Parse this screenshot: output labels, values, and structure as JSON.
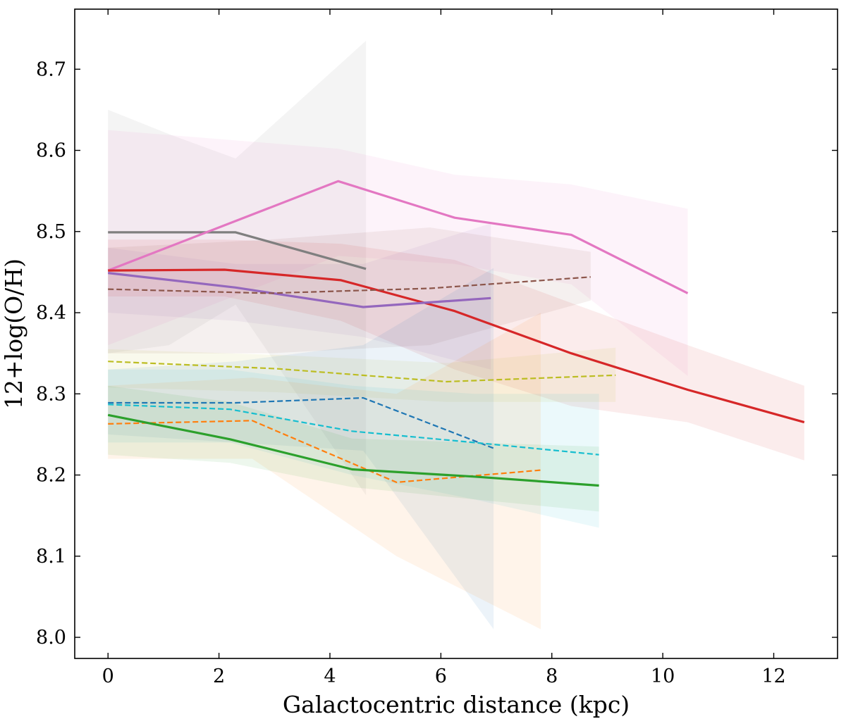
{
  "chart_data": {
    "type": "line",
    "title": "",
    "xlabel": "Galactocentric distance (kpc)",
    "ylabel": "12+log(O/H)",
    "xlim": [
      -0.6,
      13.15
    ],
    "ylim": [
      7.974,
      8.774
    ],
    "xticks": [
      0,
      2,
      4,
      6,
      8,
      10,
      12
    ],
    "xtick_labels": [
      "0",
      "2",
      "4",
      "6",
      "8",
      "10",
      "12"
    ],
    "yticks": [
      8.0,
      8.1,
      8.2,
      8.3,
      8.4,
      8.5,
      8.6,
      8.7
    ],
    "ytick_labels": [
      "8.0",
      "8.1",
      "8.2",
      "8.3",
      "8.4",
      "8.5",
      "8.6",
      "8.7"
    ],
    "grid": false,
    "series": [
      {
        "name": "gray",
        "color": "#7f7f7f",
        "dash": false,
        "x": [
          0,
          1.1,
          2.3,
          4.65
        ],
        "y": [
          8.499,
          8.499,
          8.499,
          8.454
        ],
        "band_upper": [
          8.65,
          8.62,
          8.59,
          8.735
        ],
        "band_lower": [
          8.35,
          8.36,
          8.41,
          8.175
        ]
      },
      {
        "name": "pink",
        "color": "#e377c2",
        "dash": false,
        "x": [
          0,
          4.15,
          6.25,
          8.35,
          10.45
        ],
        "y": [
          8.452,
          8.562,
          8.517,
          8.496,
          8.424
        ],
        "band_upper": [
          8.625,
          8.602,
          8.57,
          8.558,
          8.528
        ],
        "band_lower": [
          8.36,
          8.47,
          8.46,
          8.435,
          8.322
        ]
      },
      {
        "name": "red",
        "color": "#d62728",
        "dash": false,
        "x": [
          0,
          2.1,
          4.2,
          6.25,
          8.35,
          10.45,
          12.55
        ],
        "y": [
          8.452,
          8.453,
          8.44,
          8.402,
          8.35,
          8.305,
          8.265
        ],
        "band_upper": [
          8.49,
          8.49,
          8.485,
          8.465,
          8.412,
          8.36,
          8.31
        ],
        "band_lower": [
          8.42,
          8.42,
          8.39,
          8.33,
          8.285,
          8.265,
          8.218
        ]
      },
      {
        "name": "purple",
        "color": "#9467bd",
        "dash": false,
        "x": [
          0,
          2.3,
          4.6,
          6.9
        ],
        "y": [
          8.449,
          8.431,
          8.407,
          8.418
        ],
        "band_upper": [
          8.48,
          8.46,
          8.46,
          8.51
        ],
        "band_lower": [
          8.4,
          8.39,
          8.37,
          8.33
        ]
      },
      {
        "name": "brown",
        "color": "#8c564b",
        "dash": true,
        "x": [
          0,
          2.9,
          5.8,
          8.7
        ],
        "y": [
          8.429,
          8.424,
          8.43,
          8.444
        ],
        "band_upper": [
          8.48,
          8.49,
          8.505,
          8.475
        ],
        "band_lower": [
          8.35,
          8.35,
          8.36,
          8.415
        ]
      },
      {
        "name": "olive",
        "color": "#bcbd22",
        "dash": true,
        "x": [
          0,
          3.05,
          6.1,
          9.15
        ],
        "y": [
          8.34,
          8.331,
          8.315,
          8.323
        ],
        "band_upper": [
          8.355,
          8.348,
          8.338,
          8.357
        ],
        "band_lower": [
          8.308,
          8.302,
          8.29,
          8.29
        ]
      },
      {
        "name": "blue",
        "color": "#1f77b4",
        "dash": true,
        "x": [
          0,
          2.3,
          4.6,
          6.95
        ],
        "y": [
          8.289,
          8.289,
          8.295,
          8.233
        ],
        "band_upper": [
          8.33,
          8.34,
          8.36,
          8.455
        ],
        "band_lower": [
          8.25,
          8.24,
          8.23,
          8.01
        ]
      },
      {
        "name": "cyan",
        "color": "#17becf",
        "dash": true,
        "x": [
          0,
          2.2,
          4.4,
          6.6,
          8.85
        ],
        "y": [
          8.287,
          8.281,
          8.254,
          8.24,
          8.225
        ],
        "band_upper": [
          8.33,
          8.33,
          8.31,
          8.3,
          8.3
        ],
        "band_lower": [
          8.24,
          8.24,
          8.2,
          8.17,
          8.135
        ]
      },
      {
        "name": "orange",
        "color": "#ff7f0e",
        "dash": true,
        "x": [
          0,
          2.6,
          5.2,
          7.8
        ],
        "y": [
          8.263,
          8.267,
          8.191,
          8.206
        ],
        "band_upper": [
          8.31,
          8.32,
          8.3,
          8.4
        ],
        "band_lower": [
          8.22,
          8.22,
          8.1,
          8.01
        ]
      },
      {
        "name": "green",
        "color": "#2ca02c",
        "dash": false,
        "x": [
          0,
          2.2,
          4.4,
          6.6,
          8.85
        ],
        "y": [
          8.274,
          8.244,
          8.207,
          8.198,
          8.187
        ],
        "band_upper": [
          8.31,
          8.29,
          8.245,
          8.24,
          8.235
        ],
        "band_lower": [
          8.225,
          8.215,
          8.185,
          8.17,
          8.155
        ]
      }
    ]
  }
}
